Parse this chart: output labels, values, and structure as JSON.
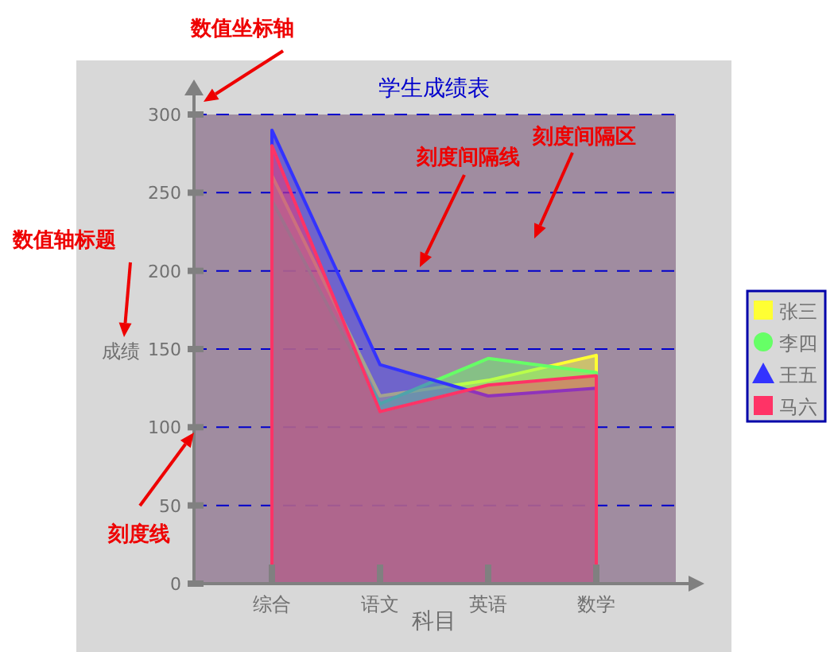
{
  "chart_data": {
    "type": "area",
    "title": "学生成绩表",
    "xlabel": "科目",
    "ylabel": "成绩",
    "categories": [
      "综合",
      "语文",
      "英语",
      "数学"
    ],
    "series": [
      {
        "name": "张三",
        "color": "#ffff33",
        "values": [
          261,
          120,
          130,
          146
        ]
      },
      {
        "name": "李四",
        "color": "#66ff66",
        "values": [
          245,
          115,
          144,
          135
        ]
      },
      {
        "name": "王五",
        "color": "#3333ff",
        "values": [
          290,
          140,
          120,
          125
        ]
      },
      {
        "name": "马六",
        "color": "#ff3366",
        "values": [
          280,
          110,
          127,
          133
        ]
      }
    ],
    "ylim": [
      0,
      300
    ],
    "yticks": [
      0,
      50,
      100,
      150,
      200,
      250,
      300
    ],
    "grid": "y",
    "legend": "right",
    "annotations": [
      "数值坐标轴",
      "数值轴标题",
      "刻度线",
      "刻度间隔线",
      "刻度间隔区"
    ]
  }
}
